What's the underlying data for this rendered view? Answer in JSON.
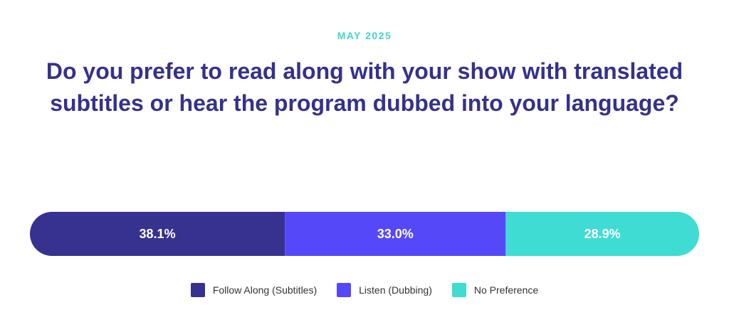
{
  "chart_data": {
    "type": "stacked-bar",
    "subtitle": "MAY 2025",
    "title": "Do you prefer to read along with your show with translated subtitles or hear the program dubbed into your language?",
    "series": [
      {
        "name": "Follow Along (Subtitles)",
        "color": "#37318f",
        "values": [
          38.1
        ],
        "value_labels": [
          "38.1%"
        ]
      },
      {
        "name": "Listen (Dubbing)",
        "color": "#5548f8",
        "values": [
          33.0
        ],
        "value_labels": [
          "33.0%"
        ]
      },
      {
        "name": "No Preference",
        "color": "#3fdcd3",
        "values": [
          28.9
        ],
        "value_labels": [
          "28.9%"
        ]
      }
    ]
  }
}
